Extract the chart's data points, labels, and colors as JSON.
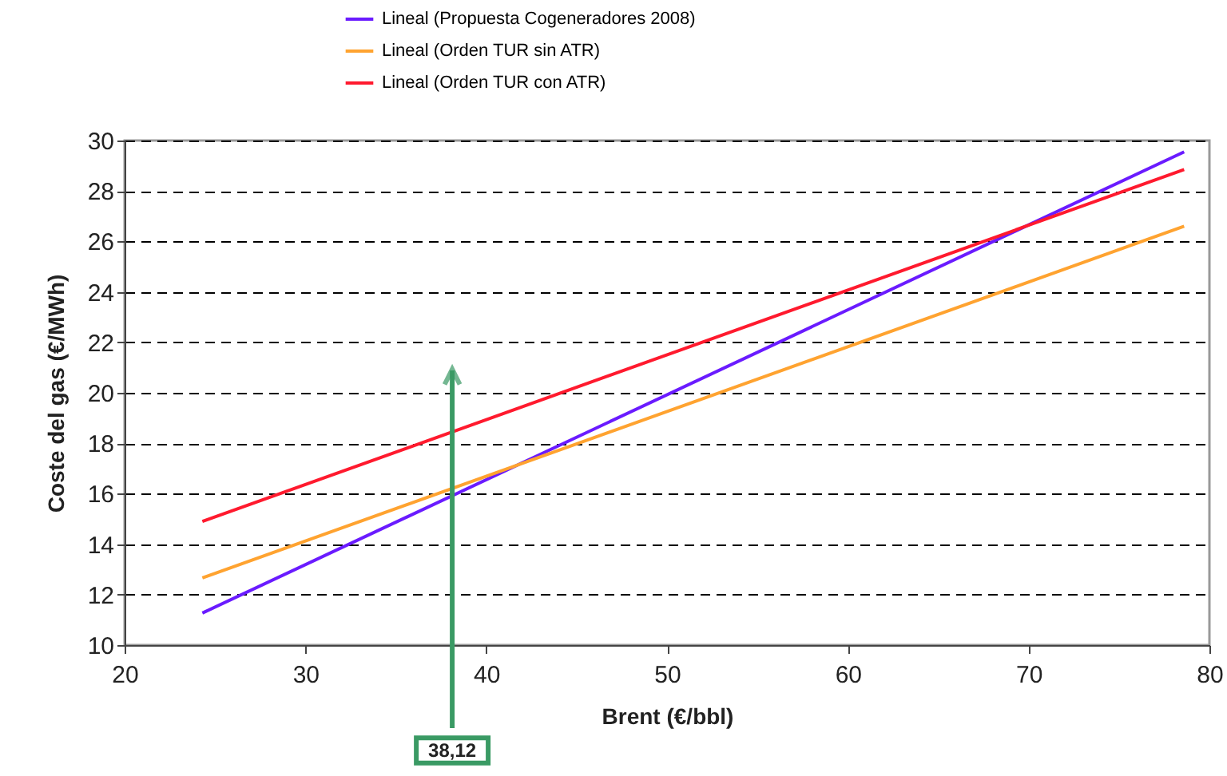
{
  "chart_data": {
    "type": "line",
    "xlabel": "Brent (€/bbl)",
    "ylabel": "Coste del gas (€/MWh)",
    "xlim": [
      20,
      80
    ],
    "xticks": [
      20,
      30,
      40,
      50,
      60,
      70,
      80
    ],
    "ylim": [
      10,
      30
    ],
    "yticks": [
      10,
      12,
      14,
      16,
      18,
      20,
      22,
      24,
      26,
      28,
      30
    ],
    "x": [
      24.3,
      78.6
    ],
    "grid": "y",
    "legend": "top",
    "line_style": "solid",
    "marker": "none",
    "series": [
      {
        "name": "Lineal (Propuesta Cogeneradores 2008)",
        "color": "#6a1bff",
        "values": [
          11.27,
          29.55
        ]
      },
      {
        "name": "Lineal (Orden TUR sin ATR)",
        "color": "#ffa330",
        "values": [
          12.66,
          26.6
        ]
      },
      {
        "name": "Lineal (Orden TUR con ATR)",
        "color": "#ff1a2e",
        "values": [
          14.9,
          28.85
        ]
      }
    ],
    "ref_lines": [
      {
        "axis": "x",
        "value": 38.12,
        "label": "38,12",
        "color": "#3a9a64"
      }
    ]
  }
}
